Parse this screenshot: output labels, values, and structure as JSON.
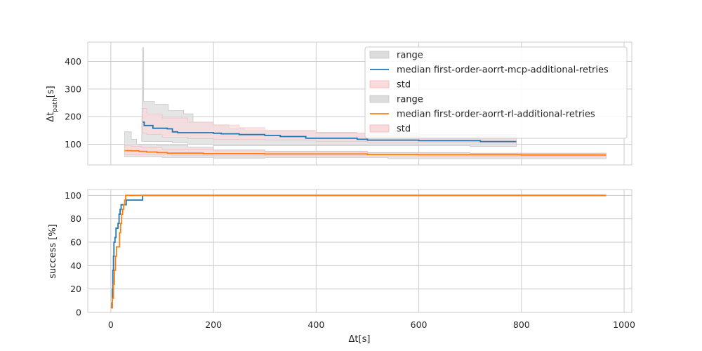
{
  "colors": {
    "blue": "#1f77b4",
    "orange": "#ff7f0e",
    "range_fill": "#dcdcdc",
    "std_fill": "#fadadd",
    "grid": "#cccccc"
  },
  "chart_data": [
    {
      "type": "line",
      "ylabel": "Δt_path[s]",
      "ylabel_main": "Δt",
      "ylabel_sub": "path",
      "ylabel_unit": "[s]",
      "xlim": [
        -45,
        1015
      ],
      "ylim": [
        25,
        470
      ],
      "xticks": [
        0,
        200,
        400,
        600,
        800,
        1000
      ],
      "yticks": [
        100,
        200,
        300,
        400
      ],
      "grid": true,
      "legend_position": "top-right",
      "legend": [
        "range",
        "median first-order-aorrt-mcp-additional-retries",
        "std",
        "range",
        "median first-order-aorrt-rl-additional-retries",
        "std"
      ],
      "series": [
        {
          "name": "median first-order-aorrt-mcp-additional-retries",
          "color": "blue",
          "median": [
            [
              62,
              180
            ],
            [
              65,
              168
            ],
            [
              80,
              168
            ],
            [
              82,
              158
            ],
            [
              110,
              156
            ],
            [
              120,
              145
            ],
            [
              130,
              142
            ],
            [
              180,
              142
            ],
            [
              200,
              140
            ],
            [
              215,
              138
            ],
            [
              250,
              135
            ],
            [
              300,
              132
            ],
            [
              330,
              128
            ],
            [
              380,
              122
            ],
            [
              480,
              118
            ],
            [
              500,
              115
            ],
            [
              600,
              113
            ],
            [
              720,
              110
            ],
            [
              790,
              110
            ]
          ],
          "range_low": [
            [
              60,
              110
            ],
            [
              70,
              110
            ],
            [
              120,
              105
            ],
            [
              150,
              100
            ],
            [
              200,
              95
            ],
            [
              300,
              95
            ],
            [
              400,
              95
            ],
            [
              600,
              95
            ],
            [
              700,
              92
            ],
            [
              790,
              92
            ]
          ],
          "range_high": [
            [
              62,
              450
            ],
            [
              64,
              255
            ],
            [
              85,
              245
            ],
            [
              112,
              222
            ],
            [
              142,
              210
            ],
            [
              160,
              180
            ],
            [
              200,
              170
            ],
            [
              230,
              158
            ],
            [
              260,
              150
            ],
            [
              300,
              148
            ],
            [
              400,
              143
            ],
            [
              480,
              140
            ],
            [
              600,
              135
            ],
            [
              790,
              130
            ]
          ],
          "std_low": [
            [
              62,
              140
            ],
            [
              70,
              135
            ],
            [
              100,
              125
            ],
            [
              150,
              120
            ],
            [
              200,
              118
            ],
            [
              300,
              115
            ],
            [
              400,
              110
            ],
            [
              500,
              108
            ],
            [
              600,
              105
            ],
            [
              790,
              100
            ]
          ],
          "std_high": [
            [
              62,
              230
            ],
            [
              70,
              210
            ],
            [
              100,
              195
            ],
            [
              150,
              180
            ],
            [
              200,
              170
            ],
            [
              250,
              160
            ],
            [
              300,
              150
            ],
            [
              400,
              140
            ],
            [
              500,
              130
            ],
            [
              600,
              125
            ],
            [
              790,
              120
            ]
          ]
        },
        {
          "name": "median first-order-aorrt-rl-additional-retries",
          "color": "orange",
          "median": [
            [
              27,
              77
            ],
            [
              40,
              76
            ],
            [
              55,
              74
            ],
            [
              70,
              72
            ],
            [
              90,
              70
            ],
            [
              110,
              68
            ],
            [
              180,
              66
            ],
            [
              300,
              65
            ],
            [
              500,
              63
            ],
            [
              600,
              62
            ],
            [
              800,
              61
            ],
            [
              965,
              61
            ]
          ],
          "range_low": [
            [
              27,
              55
            ],
            [
              40,
              55
            ],
            [
              100,
              52
            ],
            [
              200,
              50
            ],
            [
              300,
              52
            ],
            [
              400,
              52
            ],
            [
              540,
              48
            ],
            [
              700,
              48
            ],
            [
              965,
              48
            ]
          ],
          "range_high": [
            [
              27,
              145
            ],
            [
              40,
              118
            ],
            [
              50,
              100
            ],
            [
              90,
              96
            ],
            [
              150,
              90
            ],
            [
              200,
              80
            ],
            [
              300,
              75
            ],
            [
              500,
              70
            ],
            [
              700,
              68
            ],
            [
              965,
              65
            ]
          ],
          "std_low": [
            [
              27,
              62
            ],
            [
              40,
              62
            ],
            [
              60,
              63
            ],
            [
              120,
              60
            ],
            [
              200,
              58
            ],
            [
              400,
              58
            ],
            [
              600,
              57
            ],
            [
              965,
              57
            ]
          ],
          "std_high": [
            [
              27,
              95
            ],
            [
              40,
              92
            ],
            [
              60,
              88
            ],
            [
              100,
              82
            ],
            [
              200,
              76
            ],
            [
              300,
              72
            ],
            [
              500,
              69
            ],
            [
              700,
              66
            ],
            [
              965,
              65
            ]
          ]
        }
      ]
    },
    {
      "type": "line",
      "xlabel": "Δt[s]",
      "xlabel_main": "Δt",
      "xlabel_unit": "[s]",
      "ylabel": "success [%]",
      "xlim": [
        -45,
        1015
      ],
      "ylim": [
        0,
        105
      ],
      "xticks": [
        0,
        200,
        400,
        600,
        800,
        1000
      ],
      "yticks": [
        0,
        20,
        40,
        60,
        80,
        100
      ],
      "grid": true,
      "series": [
        {
          "name": "median first-order-aorrt-mcp-additional-retries",
          "color": "blue",
          "points": [
            [
              0,
              4
            ],
            [
              2,
              8
            ],
            [
              3,
              20
            ],
            [
              4,
              36
            ],
            [
              5,
              48
            ],
            [
              6,
              60
            ],
            [
              8,
              64
            ],
            [
              10,
              72
            ],
            [
              14,
              76
            ],
            [
              16,
              84
            ],
            [
              18,
              88
            ],
            [
              20,
              92
            ],
            [
              28,
              92
            ],
            [
              30,
              96
            ],
            [
              60,
              96
            ],
            [
              62,
              100
            ],
            [
              965,
              100
            ]
          ]
        },
        {
          "name": "median first-order-aorrt-rl-additional-retries",
          "color": "orange",
          "points": [
            [
              0,
              4
            ],
            [
              3,
              12
            ],
            [
              5,
              24
            ],
            [
              7,
              36
            ],
            [
              9,
              48
            ],
            [
              11,
              56
            ],
            [
              16,
              56
            ],
            [
              17,
              68
            ],
            [
              19,
              76
            ],
            [
              21,
              84
            ],
            [
              23,
              88
            ],
            [
              25,
              92
            ],
            [
              27,
              96
            ],
            [
              29,
              100
            ],
            [
              965,
              100
            ]
          ]
        }
      ]
    }
  ]
}
